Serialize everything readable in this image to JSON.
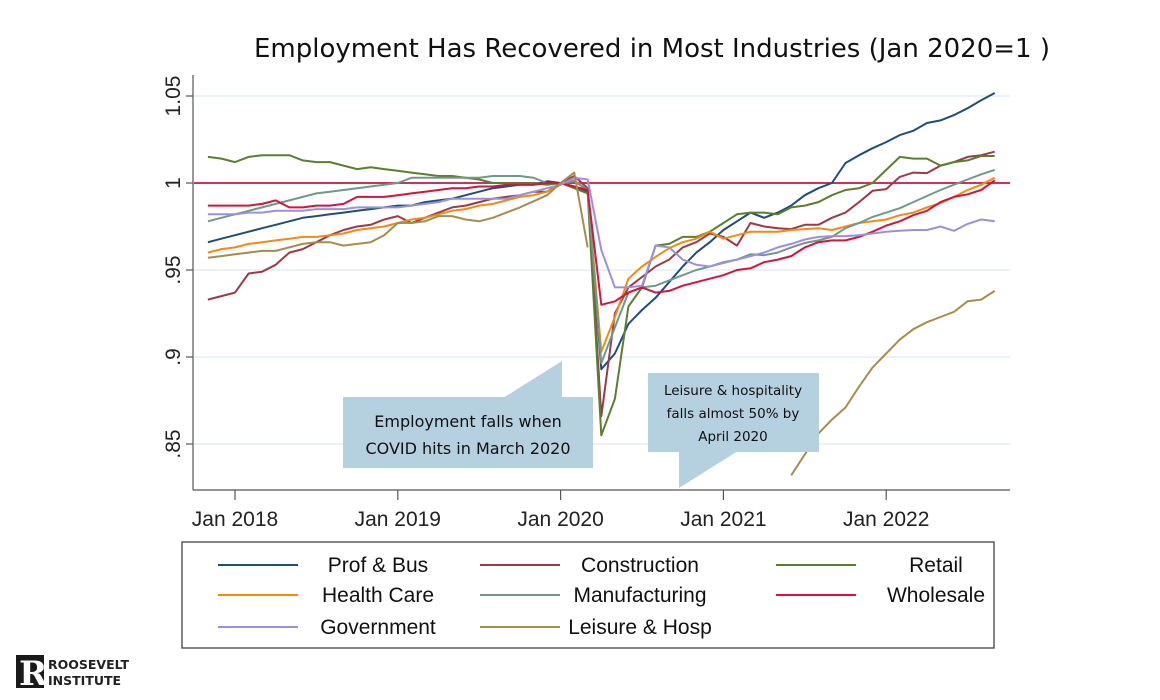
{
  "chart_data": {
    "type": "line",
    "title": "Employment Has Recovered in Most Industries (Jan 2020=1 )",
    "xlabel": "",
    "ylabel": "",
    "ylim": [
      0.825,
      1.062
    ],
    "yticks": [
      0.85,
      0.9,
      0.95,
      1,
      1.05
    ],
    "ytick_labels": [
      ".85",
      ".9",
      ".95",
      "1",
      "1.05"
    ],
    "xticks": [
      "2018-01",
      "2019-01",
      "2020-01",
      "2021-01",
      "2022-01"
    ],
    "xtick_labels": [
      "Jan 2018",
      "Jan 2019",
      "Jan 2020",
      "Jan 2021",
      "Jan 2022"
    ],
    "reference_line": {
      "y": 1,
      "color": "#c8143f"
    },
    "grid": true,
    "legend_placement": "bottom",
    "x": [
      "2017-11",
      "2017-12",
      "2018-01",
      "2018-02",
      "2018-03",
      "2018-04",
      "2018-05",
      "2018-06",
      "2018-07",
      "2018-08",
      "2018-09",
      "2018-10",
      "2018-11",
      "2018-12",
      "2019-01",
      "2019-02",
      "2019-03",
      "2019-04",
      "2019-05",
      "2019-06",
      "2019-07",
      "2019-08",
      "2019-09",
      "2019-10",
      "2019-11",
      "2019-12",
      "2020-01",
      "2020-02",
      "2020-03",
      "2020-04",
      "2020-05",
      "2020-06",
      "2020-07",
      "2020-08",
      "2020-09",
      "2020-10",
      "2020-11",
      "2020-12",
      "2021-01",
      "2021-02",
      "2021-03",
      "2021-04",
      "2021-05",
      "2021-06",
      "2021-07",
      "2021-08",
      "2021-09",
      "2021-10",
      "2021-11",
      "2021-12",
      "2022-01",
      "2022-02",
      "2022-03",
      "2022-04",
      "2022-05",
      "2022-06",
      "2022-07",
      "2022-08",
      "2022-09"
    ],
    "series": [
      {
        "name": "Prof & Bus",
        "color": "#1f4e79",
        "values": [
          0.966,
          0.968,
          0.97,
          0.972,
          0.974,
          0.976,
          0.978,
          0.98,
          0.981,
          0.982,
          0.983,
          0.984,
          0.985,
          0.986,
          0.987,
          0.987,
          0.989,
          0.99,
          0.991,
          0.993,
          0.995,
          0.997,
          0.998,
          0.999,
          0.999,
          1.001,
          1.0,
          0.998,
          0.995,
          0.893,
          0.902,
          0.919,
          0.927,
          0.934,
          0.943,
          0.952,
          0.96,
          0.966,
          0.973,
          0.978,
          0.983,
          0.98,
          0.983,
          0.987,
          0.993,
          0.997,
          1.0,
          1.0115,
          1.016,
          1.02,
          1.0235,
          1.0275,
          1.03,
          1.0345,
          1.036,
          1.039,
          1.043,
          1.0475,
          1.0517
        ]
      },
      {
        "name": "Construction",
        "color": "#9b3a48",
        "values": [
          0.933,
          0.935,
          0.937,
          0.948,
          0.949,
          0.953,
          0.96,
          0.962,
          0.966,
          0.97,
          0.973,
          0.975,
          0.976,
          0.979,
          0.981,
          0.977,
          0.98,
          0.983,
          0.986,
          0.987,
          0.989,
          0.991,
          0.992,
          0.993,
          0.995,
          0.995,
          1.0,
          1.004,
          0.997,
          0.866,
          0.925,
          0.94,
          0.946,
          0.952,
          0.956,
          0.963,
          0.966,
          0.971,
          0.969,
          0.964,
          0.977,
          0.975,
          0.974,
          0.9735,
          0.976,
          0.976,
          0.98,
          0.983,
          0.989,
          0.9955,
          0.9965,
          1.0035,
          1.006,
          1.0057,
          1.01,
          1.012,
          1.015,
          1.016,
          1.018
        ]
      },
      {
        "name": "Retail",
        "color": "#5b7f2f",
        "values": [
          1.015,
          1.014,
          1.012,
          1.015,
          1.016,
          1.016,
          1.016,
          1.013,
          1.012,
          1.012,
          1.01,
          1.008,
          1.009,
          1.008,
          1.007,
          1.006,
          1.005,
          1.004,
          1.004,
          1.003,
          1.002,
          1.0,
          1.0,
          1.0,
          1.0,
          0.999,
          1.0,
          0.997,
          0.994,
          0.855,
          0.876,
          0.929,
          0.94,
          0.964,
          0.965,
          0.969,
          0.969,
          0.972,
          0.977,
          0.982,
          0.983,
          0.983,
          0.982,
          0.986,
          0.987,
          0.989,
          0.993,
          0.996,
          0.997,
          1.0,
          1.0075,
          1.015,
          1.014,
          1.014,
          1.01,
          1.012,
          1.013,
          1.0155,
          1.0155
        ]
      },
      {
        "name": "Health Care",
        "color": "#f08c12",
        "values": [
          0.96,
          0.962,
          0.963,
          0.965,
          0.966,
          0.967,
          0.968,
          0.969,
          0.969,
          0.97,
          0.971,
          0.973,
          0.974,
          0.975,
          0.977,
          0.979,
          0.98,
          0.982,
          0.984,
          0.985,
          0.987,
          0.988,
          0.99,
          0.992,
          0.993,
          0.995,
          0.999,
          1.0015,
          0.996,
          0.903,
          0.923,
          0.945,
          0.952,
          0.9575,
          0.9625,
          0.966,
          0.968,
          0.972,
          0.968,
          0.97,
          0.972,
          0.972,
          0.972,
          0.973,
          0.9735,
          0.974,
          0.973,
          0.975,
          0.977,
          0.978,
          0.979,
          0.9815,
          0.983,
          0.986,
          0.9885,
          0.992,
          0.996,
          0.999,
          1.003
        ]
      },
      {
        "name": "Manufacturing",
        "color": "#6e9a8a",
        "values": [
          0.978,
          0.98,
          0.982,
          0.984,
          0.986,
          0.988,
          0.99,
          0.992,
          0.994,
          0.995,
          0.996,
          0.997,
          0.998,
          0.999,
          1.0,
          1.003,
          1.003,
          1.003,
          1.003,
          1.003,
          1.003,
          1.004,
          1.004,
          1.004,
          1.003,
          1.0,
          1.0,
          1.001,
          0.996,
          0.8965,
          0.917,
          0.937,
          0.94,
          0.941,
          0.944,
          0.947,
          0.95,
          0.952,
          0.9545,
          0.956,
          0.959,
          0.9585,
          0.96,
          0.963,
          0.9655,
          0.967,
          0.969,
          0.974,
          0.977,
          0.9805,
          0.983,
          0.9855,
          0.989,
          0.9925,
          0.996,
          0.999,
          1.002,
          1.005,
          1.0075
        ]
      },
      {
        "name": "Wholesale",
        "color": "#d4143c",
        "values": [
          0.987,
          0.987,
          0.987,
          0.987,
          0.988,
          0.99,
          0.986,
          0.986,
          0.987,
          0.987,
          0.988,
          0.992,
          0.992,
          0.992,
          0.993,
          0.994,
          0.995,
          0.996,
          0.997,
          0.997,
          0.998,
          0.998,
          0.999,
          0.999,
          0.999,
          1.0,
          1.0,
          0.998,
          0.996,
          0.93,
          0.932,
          0.937,
          0.94,
          0.937,
          0.938,
          0.941,
          0.943,
          0.945,
          0.947,
          0.95,
          0.951,
          0.9545,
          0.956,
          0.958,
          0.963,
          0.966,
          0.967,
          0.967,
          0.969,
          0.972,
          0.9755,
          0.978,
          0.9815,
          0.984,
          0.989,
          0.992,
          0.9935,
          0.996,
          1.0015
        ]
      },
      {
        "name": "Government",
        "color": "#9a90e0",
        "values": [
          0.982,
          0.982,
          0.982,
          0.983,
          0.983,
          0.984,
          0.984,
          0.984,
          0.985,
          0.985,
          0.985,
          0.986,
          0.986,
          0.986,
          0.986,
          0.987,
          0.988,
          0.989,
          0.991,
          0.991,
          0.991,
          0.991,
          0.991,
          0.993,
          0.995,
          0.997,
          0.999,
          1.003,
          1.002,
          0.9615,
          0.94,
          0.94,
          0.941,
          0.964,
          0.963,
          0.956,
          0.953,
          0.952,
          0.954,
          0.956,
          0.958,
          0.96,
          0.963,
          0.965,
          0.9675,
          0.969,
          0.9695,
          0.9695,
          0.97,
          0.971,
          0.972,
          0.9725,
          0.973,
          0.973,
          0.975,
          0.9725,
          0.9765,
          0.979,
          0.978
        ]
      },
      {
        "name": "Leisure & Hosp",
        "color": "#a68c4f",
        "values": [
          0.957,
          0.958,
          0.959,
          0.96,
          0.961,
          0.961,
          0.963,
          0.965,
          0.966,
          0.966,
          0.964,
          0.965,
          0.966,
          0.97,
          0.977,
          0.977,
          0.978,
          0.981,
          0.981,
          0.979,
          0.978,
          0.98,
          0.983,
          0.986,
          0.9895,
          0.993,
          1.0,
          1.006,
          0.963,
          null,
          null,
          null,
          null,
          null,
          null,
          null,
          null,
          null,
          null,
          null,
          null,
          null,
          null,
          0.832,
          0.844,
          0.856,
          0.864,
          0.871,
          0.883,
          0.894,
          0.902,
          0.91,
          0.916,
          0.92,
          0.923,
          0.926,
          0.932,
          0.933,
          0.938
        ]
      }
    ],
    "annotations": [
      {
        "lines": [
          "Employment falls when",
          "COVID hits in March 2020"
        ],
        "points_to": "2020-03"
      },
      {
        "lines": [
          "Leisure & hospitality",
          "falls almost 50% by",
          "April 2020"
        ],
        "points_to": "2020-10"
      }
    ],
    "annotation_color": "#b5d0de",
    "gridline_color": "#e4eef2"
  },
  "logo": {
    "line1": "ROOSEVELT",
    "line2": "INSTITUTE"
  }
}
